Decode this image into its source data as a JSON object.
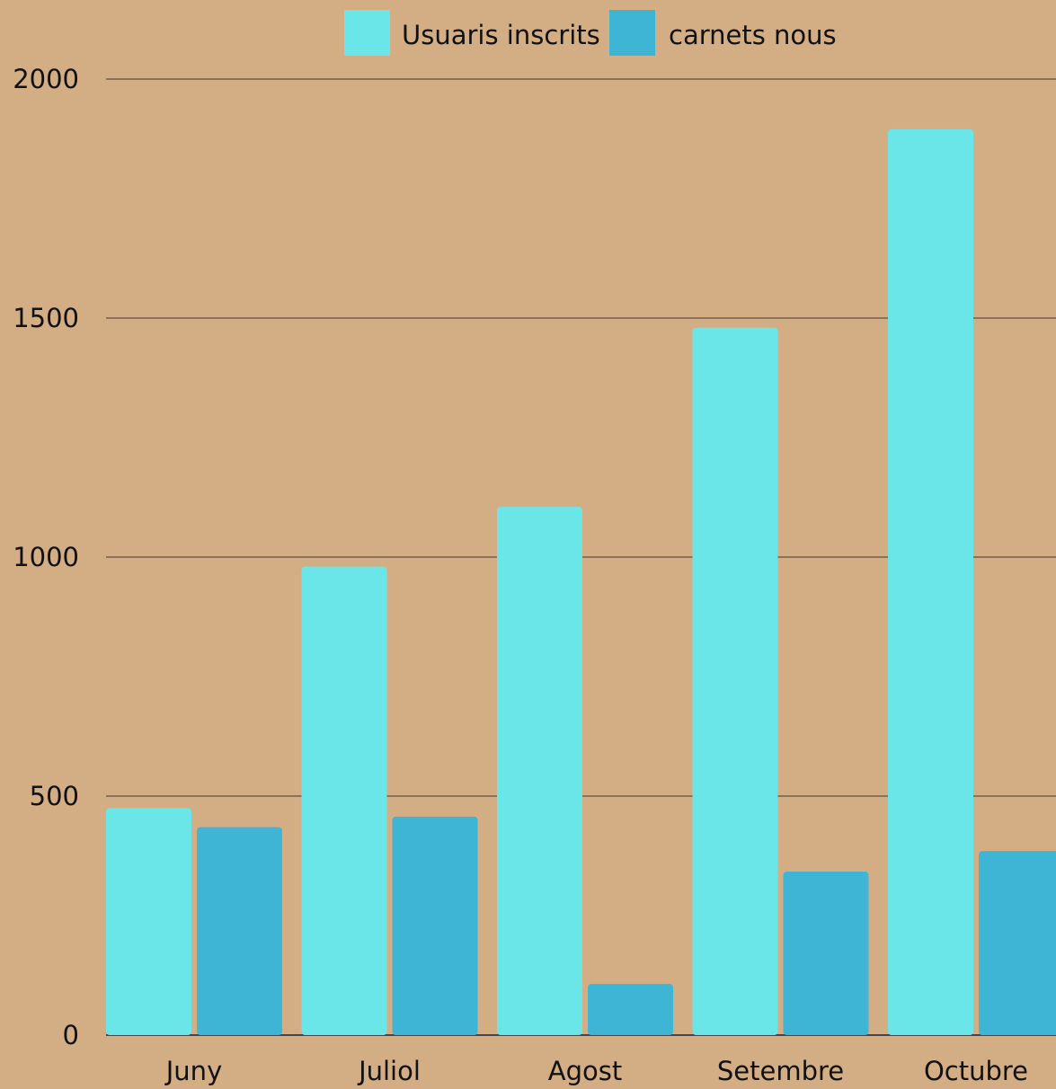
{
  "chart_data": {
    "type": "bar",
    "categories": [
      "Juny",
      "Juliol",
      "Agost",
      "Setembre",
      "Octubre"
    ],
    "series": [
      {
        "name": "Usuaris inscrits",
        "color": "#6ae6e9",
        "values": [
          475,
          980,
          1105,
          1480,
          1895
        ]
      },
      {
        "name": "carnets nous",
        "color": "#3fb5d5",
        "values": [
          435,
          457,
          107,
          342,
          385
        ]
      }
    ],
    "yticks": [
      "0",
      "500",
      "1000",
      "1500",
      "2000"
    ],
    "ylim": [
      0,
      2000
    ],
    "grid": true,
    "legend": "top-center",
    "title": "",
    "xlabel": "",
    "ylabel": ""
  }
}
